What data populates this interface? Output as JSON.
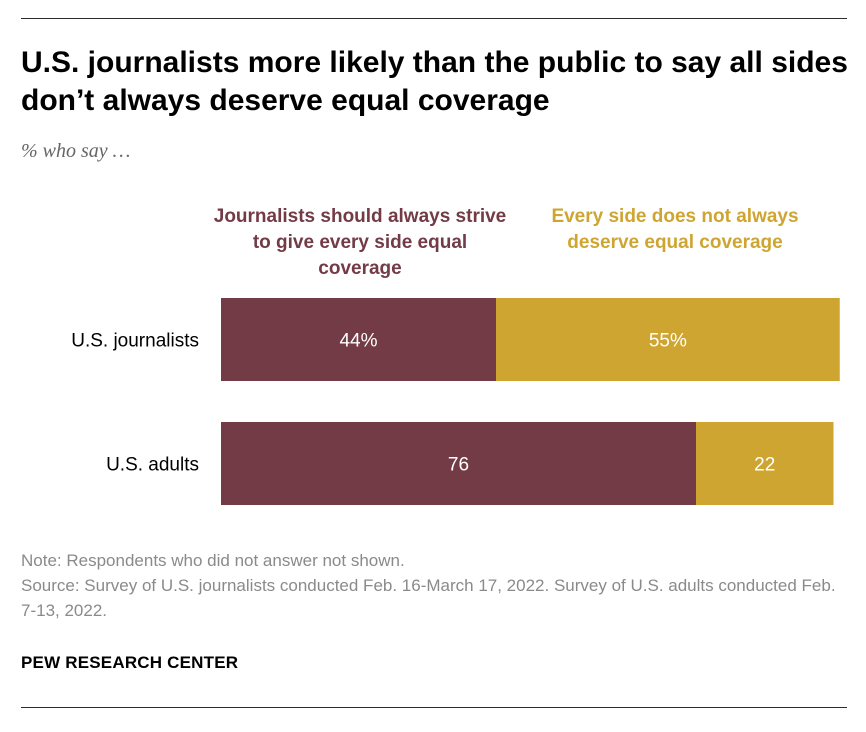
{
  "title": "U.S. journalists more likely than the public to say all sides don’t always deserve equal coverage",
  "subtitle": "% who say …",
  "legend": {
    "series_a": "Journalists should always strive to give every side equal coverage",
    "series_b": "Every side does not always deserve equal coverage"
  },
  "colors": {
    "series_a": "#733b46",
    "series_b": "#cfa531"
  },
  "chart_data": {
    "type": "bar",
    "orientation": "horizontal",
    "stacked": true,
    "categories": [
      "U.S. journalists",
      "U.S. adults"
    ],
    "series": [
      {
        "name": "Journalists should always strive to give every side equal coverage",
        "values": [
          44,
          76
        ],
        "labels": [
          "44%",
          "76"
        ]
      },
      {
        "name": "Every side does not always deserve equal coverage",
        "values": [
          55,
          22
        ],
        "labels": [
          "55%",
          "22"
        ]
      }
    ],
    "xlim": [
      0,
      100
    ],
    "grid": false,
    "legend_placement": "top"
  },
  "note": "Note: Respondents who did not answer not shown.",
  "source": "Source: Survey of U.S. journalists conducted Feb. 16-March 17, 2022. Survey of U.S. adults conducted Feb. 7-13, 2022.",
  "brand": "PEW RESEARCH CENTER"
}
